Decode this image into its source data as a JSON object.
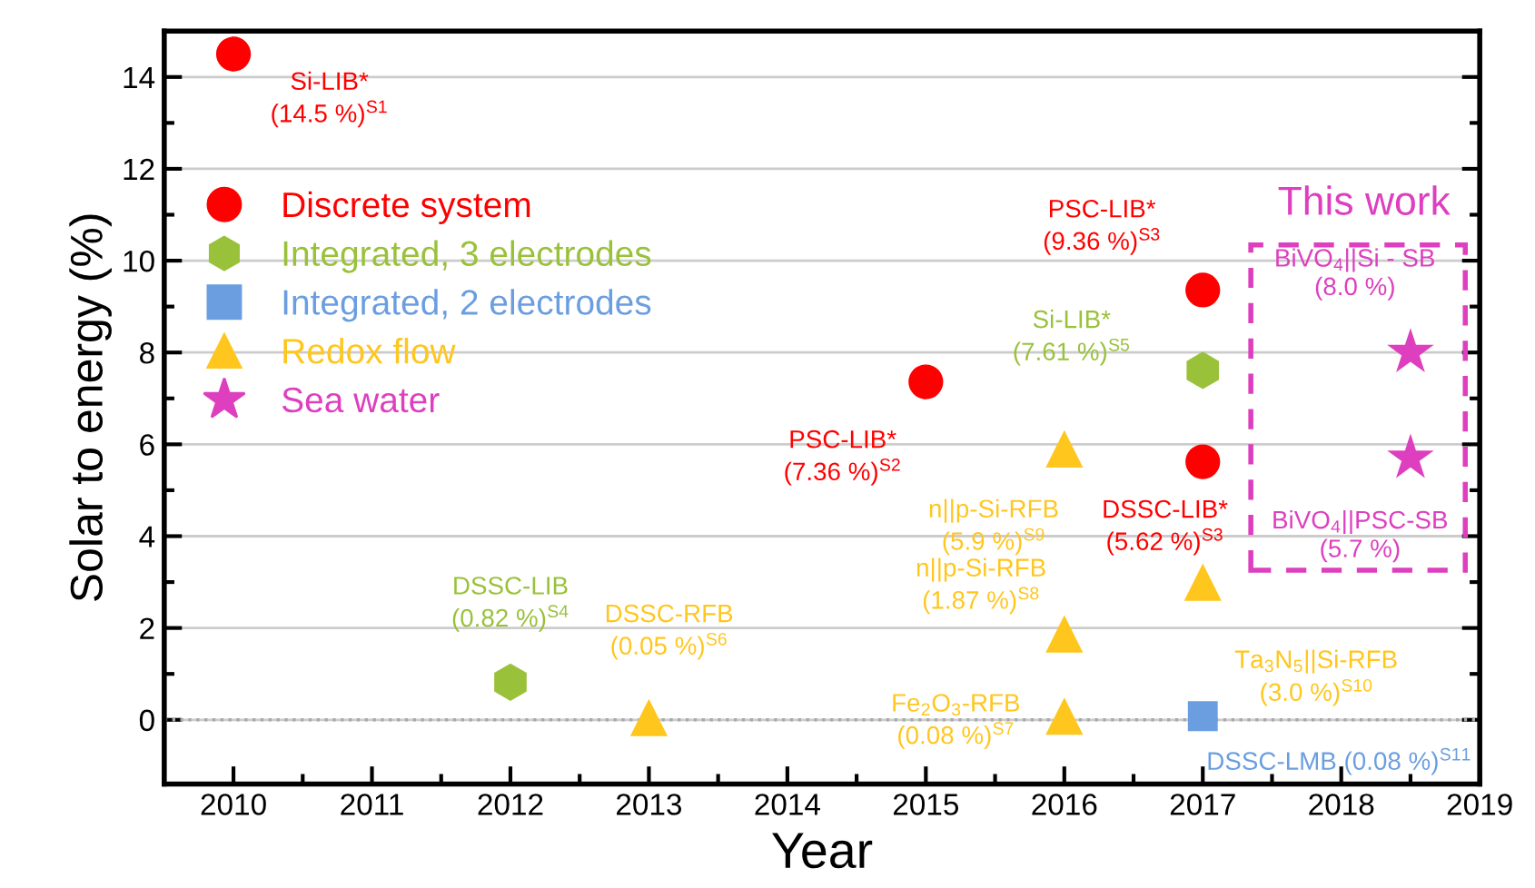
{
  "chart_data": {
    "type": "scatter",
    "xlabel": "Year",
    "ylabel": "Solar to energy (%)",
    "xlim": [
      2009.5,
      2019
    ],
    "xticks": [
      2010,
      2011,
      2012,
      2013,
      2014,
      2015,
      2016,
      2017,
      2018,
      2019
    ],
    "ylim": [
      -1.4,
      15
    ],
    "yticks": [
      0,
      2,
      4,
      6,
      8,
      10,
      12,
      14
    ],
    "grid": "y",
    "legend": "top left",
    "series": [
      {
        "name": "Discrete system",
        "color": "#ff0000",
        "marker": "circle",
        "x": [
          2010,
          2015,
          2017,
          2017
        ],
        "values": [
          14.5,
          7.36,
          9.36,
          5.62
        ]
      },
      {
        "name": "Integrated, 3 electrodes",
        "color": "#99c13a",
        "x": [
          2012,
          2017
        ],
        "values": [
          0.82,
          7.61
        ]
      },
      {
        "name": "Integrated, 2 electrodes",
        "color": "#6a9ee0",
        "marker": "square",
        "x": [
          2017
        ],
        "values": [
          0.08
        ]
      },
      {
        "name": "Redox flow",
        "color": "#ffc61e",
        "marker": "triangle",
        "x": [
          2013,
          2016,
          2016,
          2016,
          2017
        ],
        "values": [
          0.05,
          5.9,
          1.87,
          0.08,
          3.0
        ]
      },
      {
        "name": "Sea water",
        "color": "#dd3fbf",
        "marker": "star",
        "x": [
          2018.5,
          2018.5
        ],
        "values": [
          8.0,
          5.7
        ]
      }
    ],
    "ref_lines": [
      {
        "axis": "y",
        "value": 0,
        "color": "#aaaaaa",
        "line_style": "dotted"
      }
    ],
    "annotations": [
      {
        "text": "Si-LIB*\n(14.5 %)$^{S1}$",
        "x": 2010,
        "y": 14.5
      },
      {
        "text": "PSC-LIB*\n(7.36 %)$^{S2}$",
        "x": 2015,
        "y": 7.36
      },
      {
        "text": "PSC-LIB*\n(9.36 %)$^{S3}$",
        "x": 2017,
        "y": 9.36
      },
      {
        "text": "DSSC-LIB*\n(5.62 %)$^{S3}$",
        "x": 2017,
        "y": 5.62
      },
      {
        "text": "Si-LIB*\n(7.61 %)$^{S5}$",
        "x": 2017,
        "y": 7.61
      },
      {
        "text": "DSSC-LIB\n(0.82 %)$^{S4}$",
        "x": 2012,
        "y": 0.82
      },
      {
        "text": "DSSC-RFB\n(0.05 %)$^{S6}$",
        "x": 2013,
        "y": 0.05
      },
      {
        "text": "n||p-Si-RFB\n(5.9 %)$^{S9}$",
        "x": 2016,
        "y": 5.9
      },
      {
        "text": "n||p-Si-RFB\n(1.87 %)$^{S8}$",
        "x": 2016,
        "y": 1.87
      },
      {
        "text": "Fe$_{2}$O$_{3}$-RFB\n(0.08 %)$^{S7}$",
        "x": 2016,
        "y": 0.08
      },
      {
        "text": "Ta$_{3}$N$_{5}$||Si-RFB\n(3.0 %)$^{S10}$",
        "x": 2017,
        "y": 3.0
      },
      {
        "text": "DSSC-LMB (0.08 %)$^{S11}$",
        "x": 2017,
        "y": 0.08
      },
      {
        "text": "BiVO$_{4}$||Si - SB\n(8.0 %)",
        "x": 2018.5,
        "y": 8.0
      },
      {
        "text": "BiVO$_{4}$||PSC-SB\n(5.7 %)",
        "x": 2018.5,
        "y": 5.7
      },
      "This work"
    ]
  }
}
